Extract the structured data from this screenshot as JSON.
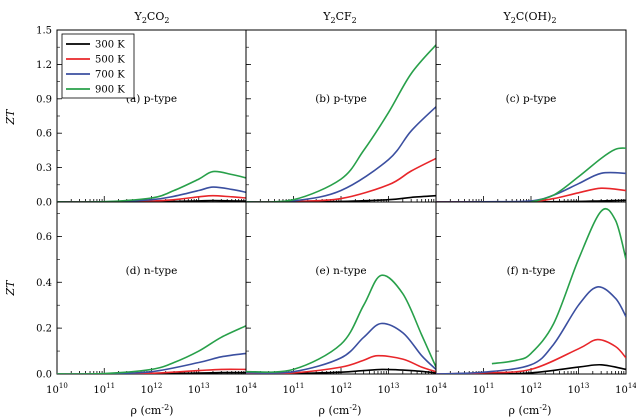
{
  "figure": {
    "column_titles": [
      {
        "base": "Y",
        "sub1": "2",
        "mid": "CO",
        "sub2": "2",
        "tail": ""
      },
      {
        "base": "Y",
        "sub1": "2",
        "mid": "CF",
        "sub2": "2",
        "tail": ""
      },
      {
        "base": "Y",
        "sub1": "2",
        "mid": "C(OH)",
        "sub2": "2",
        "tail": ""
      }
    ],
    "ylabel": "ZT",
    "xlabel_main": "ρ (cm",
    "xlabel_sup": "-2",
    "xlabel_end": ")",
    "x_tick_base": "10",
    "x_tick_exponents": [
      "10",
      "11",
      "12",
      "13",
      "14"
    ],
    "top_y_ticks": [
      "0.0",
      "0.3",
      "0.6",
      "0.9",
      "1.2",
      "1.5"
    ],
    "bottom_y_ticks": [
      "0.0",
      "0.2",
      "0.4",
      "0.6"
    ]
  },
  "colors": {
    "300 K": "#000000",
    "500 K": "#e8262a",
    "700 K": "#3b4fa0",
    "900 K": "#28a04a"
  },
  "chart_data": [
    {
      "type": "line",
      "panel": "(a) p-type",
      "title": "Y2CO2",
      "ylabel": "ZT",
      "xlabel": "ρ (cm-2)",
      "xscale": "log",
      "xlim": [
        10000000000.0,
        100000000000000.0
      ],
      "ylim": [
        0,
        1.5
      ],
      "legend": "top-left",
      "series": [
        {
          "name": "300 K",
          "x": [
            10000000000.0,
            100000000000.0,
            1000000000000.0,
            3000000000000.0,
            10000000000000.0,
            20000000000000.0,
            50000000000000.0,
            100000000000000.0
          ],
          "y": [
            0,
            0.0,
            0.002,
            0.005,
            0.01,
            0.012,
            0.01,
            0.008
          ]
        },
        {
          "name": "500 K",
          "x": [
            10000000000.0,
            100000000000.0,
            1000000000000.0,
            3000000000000.0,
            10000000000000.0,
            20000000000000.0,
            50000000000000.0,
            100000000000000.0
          ],
          "y": [
            0,
            0.001,
            0.008,
            0.02,
            0.045,
            0.055,
            0.045,
            0.035
          ]
        },
        {
          "name": "700 K",
          "x": [
            10000000000.0,
            100000000000.0,
            1000000000000.0,
            3000000000000.0,
            10000000000000.0,
            20000000000000.0,
            50000000000000.0,
            100000000000000.0
          ],
          "y": [
            0,
            0.002,
            0.02,
            0.05,
            0.1,
            0.13,
            0.11,
            0.085
          ]
        },
        {
          "name": "900 K",
          "x": [
            10000000000.0,
            100000000000.0,
            1000000000000.0,
            3000000000000.0,
            10000000000000.0,
            20000000000000.0,
            50000000000000.0,
            100000000000000.0
          ],
          "y": [
            0,
            0.003,
            0.035,
            0.1,
            0.2,
            0.265,
            0.24,
            0.21
          ]
        }
      ]
    },
    {
      "type": "line",
      "panel": "(b) p-type",
      "title": "Y2CF2",
      "ylabel": "ZT",
      "xlabel": "ρ (cm-2)",
      "xscale": "log",
      "xlim": [
        10000000000.0,
        100000000000000.0
      ],
      "ylim": [
        0,
        1.5
      ],
      "series": [
        {
          "name": "300 K",
          "x": [
            10000000000.0,
            100000000000.0,
            1000000000000.0,
            10000000000000.0,
            30000000000000.0,
            100000000000000.0
          ],
          "y": [
            0,
            0.0,
            0.005,
            0.02,
            0.04,
            0.055
          ]
        },
        {
          "name": "500 K",
          "x": [
            10000000000.0,
            100000000000.0,
            1000000000000.0,
            10000000000000.0,
            30000000000000.0,
            100000000000000.0
          ],
          "y": [
            0,
            0.005,
            0.03,
            0.15,
            0.27,
            0.38
          ]
        },
        {
          "name": "700 K",
          "x": [
            10000000000.0,
            100000000000.0,
            1000000000000.0,
            10000000000000.0,
            30000000000000.0,
            100000000000000.0
          ],
          "y": [
            0,
            0.01,
            0.1,
            0.37,
            0.62,
            0.83
          ]
        },
        {
          "name": "900 K",
          "x": [
            10000000000.0,
            100000000000.0,
            1000000000000.0,
            3000000000000.0,
            10000000000000.0,
            30000000000000.0,
            100000000000000.0
          ],
          "y": [
            0,
            0.02,
            0.2,
            0.45,
            0.78,
            1.12,
            1.37
          ]
        }
      ]
    },
    {
      "type": "line",
      "panel": "(c) p-type",
      "title": "Y2C(OH)2",
      "ylabel": "ZT",
      "xlabel": "ρ (cm-2)",
      "xscale": "log",
      "xlim": [
        10000000000.0,
        100000000000000.0
      ],
      "ylim": [
        0,
        1.5
      ],
      "series": [
        {
          "name": "300 K",
          "x": [
            10000000000.0,
            100000000000.0,
            1000000000000.0,
            10000000000000.0,
            30000000000000.0,
            100000000000000.0
          ],
          "y": [
            0,
            0.0,
            0.001,
            0.005,
            0.01,
            0.015
          ]
        },
        {
          "name": "500 K",
          "x": [
            10000000000.0,
            100000000000.0,
            1000000000000.0,
            3000000000000.0,
            10000000000000.0,
            30000000000000.0,
            100000000000000.0
          ],
          "y": [
            0,
            0.001,
            0.005,
            0.03,
            0.08,
            0.12,
            0.1
          ]
        },
        {
          "name": "700 K",
          "x": [
            10000000000.0,
            100000000000.0,
            1000000000000.0,
            3000000000000.0,
            10000000000000.0,
            30000000000000.0,
            100000000000000.0
          ],
          "y": [
            0,
            0.002,
            0.01,
            0.06,
            0.16,
            0.25,
            0.25
          ]
        },
        {
          "name": "900 K",
          "x": [
            1000000000000.0,
            3000000000000.0,
            10000000000000.0,
            30000000000000.0,
            60000000000000.0,
            100000000000000.0
          ],
          "y": [
            0.0,
            0.06,
            0.22,
            0.38,
            0.46,
            0.47
          ]
        }
      ]
    },
    {
      "type": "line",
      "panel": "(d) n-type",
      "title": "Y2CO2",
      "ylabel": "ZT",
      "xlabel": "ρ (cm-2)",
      "xscale": "log",
      "xlim": [
        10000000000.0,
        100000000000000.0
      ],
      "ylim": [
        0,
        0.75
      ],
      "series": [
        {
          "name": "300 K",
          "x": [
            10000000000.0,
            100000000000.0,
            1000000000000.0,
            10000000000000.0,
            30000000000000.0,
            100000000000000.0
          ],
          "y": [
            0,
            0.0,
            0.001,
            0.004,
            0.006,
            0.006
          ]
        },
        {
          "name": "500 K",
          "x": [
            10000000000.0,
            100000000000.0,
            1000000000000.0,
            10000000000000.0,
            30000000000000.0,
            100000000000000.0
          ],
          "y": [
            0,
            0.0,
            0.003,
            0.015,
            0.02,
            0.02
          ]
        },
        {
          "name": "700 K",
          "x": [
            10000000000.0,
            100000000000.0,
            1000000000000.0,
            10000000000000.0,
            30000000000000.0,
            100000000000000.0
          ],
          "y": [
            0,
            0.001,
            0.01,
            0.05,
            0.075,
            0.09
          ]
        },
        {
          "name": "900 K",
          "x": [
            10000000000.0,
            100000000000.0,
            1000000000000.0,
            3000000000000.0,
            10000000000000.0,
            30000000000000.0,
            100000000000000.0
          ],
          "y": [
            0,
            0.002,
            0.02,
            0.05,
            0.1,
            0.16,
            0.21
          ]
        }
      ]
    },
    {
      "type": "line",
      "panel": "(e) n-type",
      "title": "Y2CF2",
      "ylabel": "ZT",
      "xlabel": "ρ (cm-2)",
      "xscale": "log",
      "xlim": [
        10000000000.0,
        100000000000000.0
      ],
      "ylim": [
        0,
        0.75
      ],
      "series": [
        {
          "name": "300 K",
          "x": [
            10000000000.0,
            100000000000.0,
            1000000000000.0,
            3000000000000.0,
            8000000000000.0,
            30000000000000.0,
            100000000000000.0
          ],
          "y": [
            0.0,
            0.002,
            0.008,
            0.015,
            0.02,
            0.015,
            0.005
          ]
        },
        {
          "name": "500 K",
          "x": [
            10000000000.0,
            100000000000.0,
            1000000000000.0,
            3000000000000.0,
            6000000000000.0,
            20000000000000.0,
            50000000000000.0,
            100000000000000.0
          ],
          "y": [
            0.0,
            0.005,
            0.03,
            0.06,
            0.08,
            0.065,
            0.03,
            0.01
          ]
        },
        {
          "name": "700 K",
          "x": [
            10000000000.0,
            100000000000.0,
            1000000000000.0,
            3000000000000.0,
            7000000000000.0,
            20000000000000.0,
            50000000000000.0,
            100000000000000.0
          ],
          "y": [
            0.005,
            0.01,
            0.07,
            0.16,
            0.22,
            0.18,
            0.08,
            0.02
          ]
        },
        {
          "name": "900 K",
          "x": [
            10000000000.0,
            100000000000.0,
            1000000000000.0,
            3000000000000.0,
            7000000000000.0,
            20000000000000.0,
            50000000000000.0,
            100000000000000.0
          ],
          "y": [
            0.01,
            0.02,
            0.13,
            0.3,
            0.43,
            0.35,
            0.17,
            0.03
          ]
        }
      ]
    },
    {
      "type": "line",
      "panel": "(f) n-type",
      "title": "Y2C(OH)2",
      "ylabel": "ZT",
      "xlabel": "ρ (cm-2)",
      "xscale": "log",
      "xlim": [
        10000000000.0,
        100000000000000.0
      ],
      "ylim": [
        0,
        0.75
      ],
      "series": [
        {
          "name": "300 K",
          "x": [
            10000000000.0,
            100000000000.0,
            1000000000000.0,
            10000000000000.0,
            30000000000000.0,
            100000000000000.0
          ],
          "y": [
            0,
            0.0,
            0.005,
            0.03,
            0.04,
            0.02
          ]
        },
        {
          "name": "500 K",
          "x": [
            10000000000.0,
            100000000000.0,
            1000000000000.0,
            10000000000000.0,
            25000000000000.0,
            60000000000000.0,
            100000000000000.0
          ],
          "y": [
            0,
            0.005,
            0.02,
            0.11,
            0.15,
            0.12,
            0.07
          ]
        },
        {
          "name": "700 K",
          "x": [
            10000000000.0,
            100000000000.0,
            1000000000000.0,
            3000000000000.0,
            10000000000000.0,
            25000000000000.0,
            60000000000000.0,
            100000000000000.0
          ],
          "y": [
            0,
            0.008,
            0.04,
            0.13,
            0.3,
            0.38,
            0.33,
            0.25
          ]
        },
        {
          "name": "900 K",
          "x": [
            150000000000.0,
            500000000000.0,
            1000000000000.0,
            3000000000000.0,
            10000000000000.0,
            30000000000000.0,
            60000000000000.0,
            100000000000000.0
          ],
          "y": [
            0.045,
            0.06,
            0.09,
            0.22,
            0.5,
            0.71,
            0.67,
            0.5
          ]
        }
      ]
    }
  ]
}
